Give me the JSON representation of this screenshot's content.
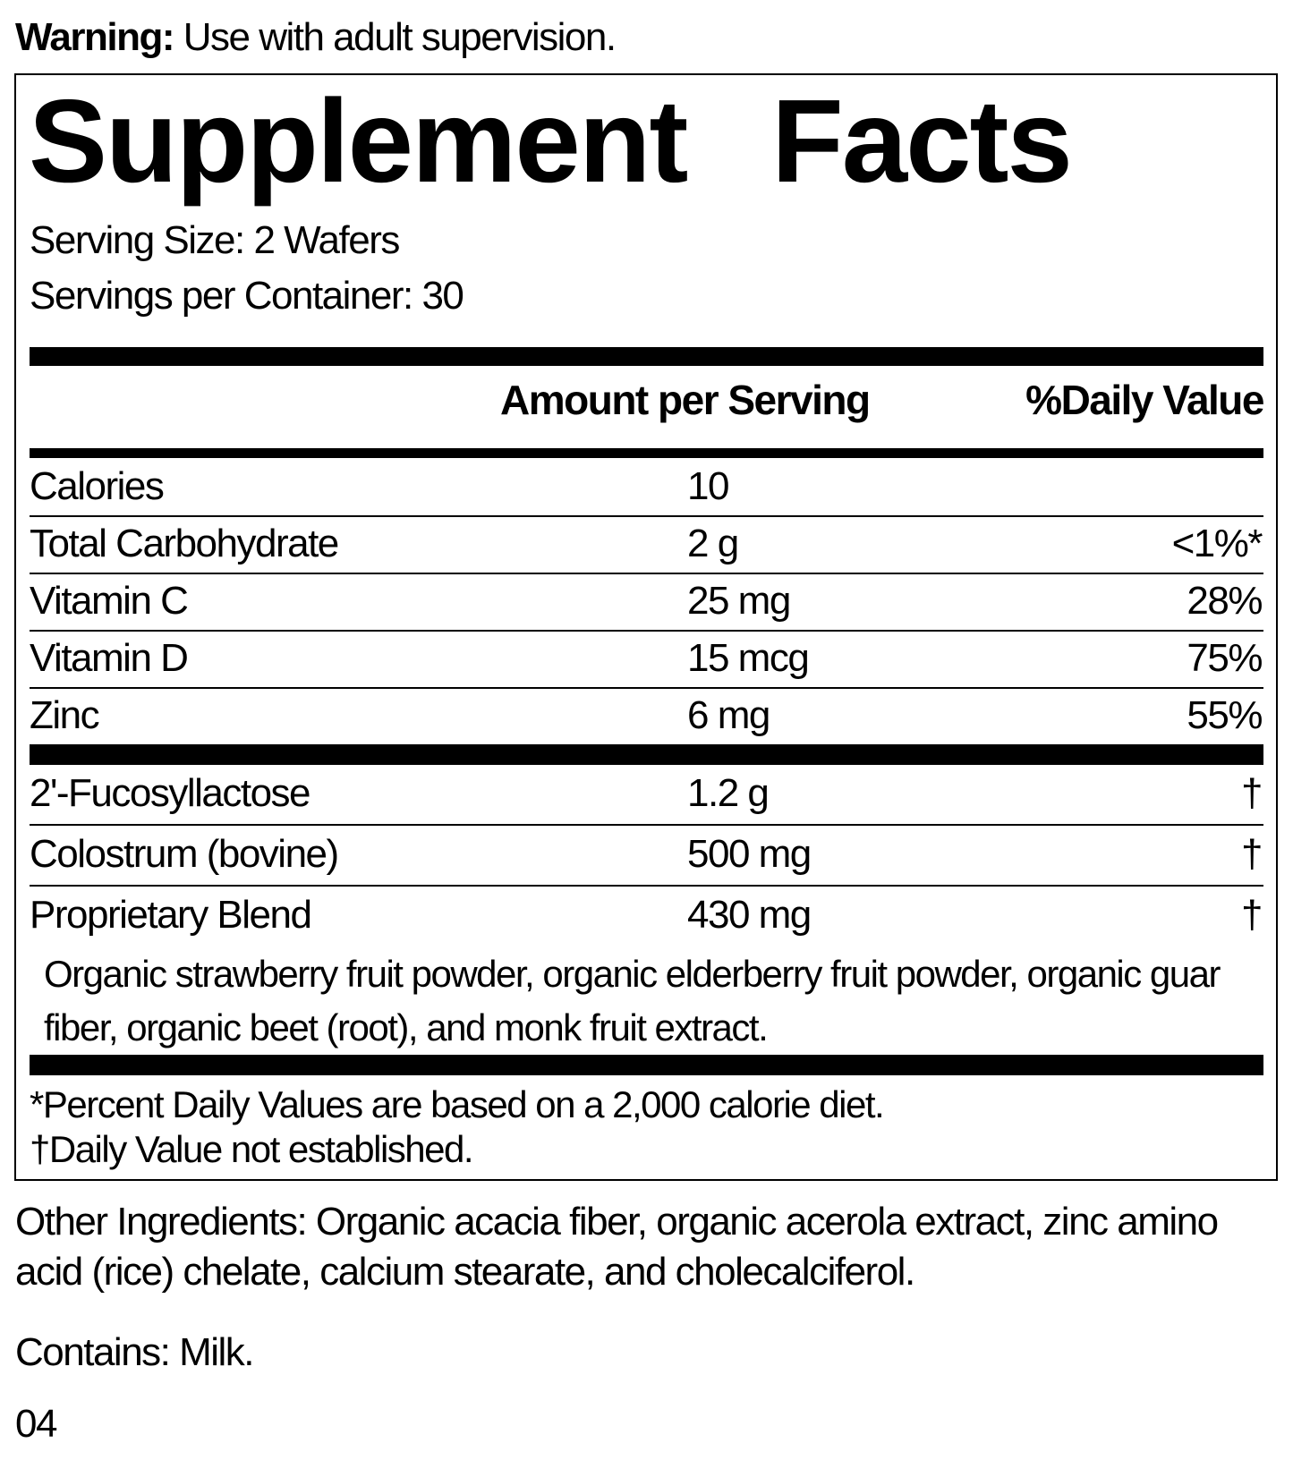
{
  "warning": {
    "label": "Warning:",
    "text": "Use with adult supervision."
  },
  "title": "Supplement Facts",
  "serving_size": "Serving Size: 2 Wafers",
  "servings_per_container": "Servings per Container: 30",
  "header": {
    "amount": "Amount per Serving",
    "daily_value": "%Daily Value"
  },
  "nutrients": [
    {
      "name": "Calories",
      "amount": "10",
      "dv": ""
    },
    {
      "name": "Total Carbohydrate",
      "amount": "2 g",
      "dv": "<1%*"
    },
    {
      "name": "Vitamin C",
      "amount": "25 mg",
      "dv": "28%"
    },
    {
      "name": "Vitamin D",
      "amount": "15 mcg",
      "dv": "75%"
    },
    {
      "name": "Zinc",
      "amount": "6 mg",
      "dv": "55%"
    }
  ],
  "other_nutrients": [
    {
      "name": "2'-Fucosyllactose",
      "amount": "1.2 g",
      "dv": "†"
    },
    {
      "name": "Colostrum (bovine)",
      "amount": "500 mg",
      "dv": "†"
    },
    {
      "name": "Proprietary Blend",
      "amount": "430 mg",
      "dv": "†"
    }
  ],
  "blend_description": "Organic strawberry fruit powder, organic elderberry fruit powder, organic guar fiber, organic beet (root), and monk fruit extract.",
  "footnotes": [
    "*Percent Daily Values are based on a 2,000 calorie diet.",
    "†Daily Value not established."
  ],
  "other_ingredients": "Other Ingredients: Organic acacia fiber, organic acerola extract, zinc amino acid (rice) chelate, calcium stearate, and cholecalciferol.",
  "contains": "Contains: Milk.",
  "code": "04"
}
